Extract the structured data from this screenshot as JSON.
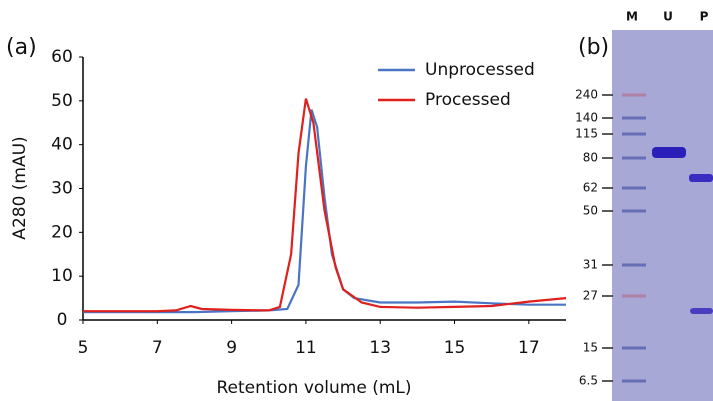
{
  "chart_data": {
    "type": "line",
    "panel_label": "(a)",
    "x_label": "Retention volume (mL)",
    "y_label": "A280 (mAU)",
    "xlim": [
      5,
      18
    ],
    "xticks": [
      5,
      7,
      9,
      11,
      13,
      15,
      17
    ],
    "ylim": [
      0,
      60
    ],
    "yticks": [
      0,
      10,
      20,
      30,
      40,
      50,
      60
    ],
    "legend": "upper right",
    "series": [
      {
        "name": "Unprocessed",
        "color": "#4a74c4",
        "x": [
          5,
          6,
          7,
          8,
          9,
          10,
          10.5,
          10.8,
          11,
          11.15,
          11.3,
          11.5,
          11.7,
          12,
          12.3,
          13,
          14,
          15,
          16,
          17,
          18
        ],
        "values": [
          1.8,
          1.8,
          1.8,
          1.8,
          2,
          2.2,
          2.5,
          8,
          35,
          48,
          44,
          28,
          15,
          7,
          5,
          4,
          4,
          4.2,
          3.8,
          3.5,
          3.5
        ]
      },
      {
        "name": "Processed",
        "color": "#e0201c",
        "x": [
          5,
          6,
          7,
          7.5,
          7.9,
          8.2,
          9,
          10,
          10.3,
          10.6,
          10.8,
          11,
          11.2,
          11.5,
          11.8,
          12,
          12.5,
          13,
          14,
          15,
          16,
          17,
          18
        ],
        "values": [
          2,
          2,
          2,
          2.2,
          3.2,
          2.5,
          2.3,
          2.2,
          3,
          15,
          38,
          50.5,
          45,
          25,
          12,
          7,
          4,
          3,
          2.8,
          3,
          3.2,
          4.2,
          5
        ]
      }
    ]
  },
  "gel": {
    "panel_label": "(b)",
    "lanes": [
      "M",
      "U",
      "P"
    ],
    "markers": [
      "240",
      "140",
      "115",
      "80",
      "62",
      "50",
      "31",
      "27",
      "15",
      "6.5"
    ]
  }
}
